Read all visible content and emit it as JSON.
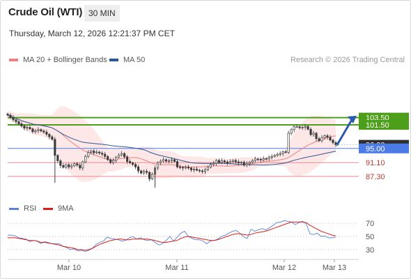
{
  "header": {
    "title": "Crude Oil (WTI)",
    "interval": "30 MIN"
  },
  "timestamp": "Thursday, March 12, 2026 12:21:37 PM CET",
  "legend": {
    "ma20": {
      "label": "MA 20 + Bollinger Bands",
      "color": "#f08080"
    },
    "ma50": {
      "label": "MA 50",
      "color": "#2b5797"
    }
  },
  "copyright": "Research © 2026 Trading Central",
  "rsi_legend": {
    "rsi": {
      "label": "RSI",
      "color": "#5b7fd6"
    },
    "ma9": {
      "label": "9MA",
      "color": "#d91e18"
    }
  },
  "colors": {
    "resistance": "#4d9e1a",
    "pivot": "#4c7be8",
    "support": "#e8898c",
    "candle_up": "#3a3a3a",
    "candle_down": "#3a3a3a",
    "arrow": "#2a5bb0",
    "current_price": "#2f2f2f"
  },
  "chart_data": [
    {
      "type": "candlestick",
      "y_range": [
        84.0,
        109.0
      ],
      "x_tick_labels": [
        "Mar 10",
        "Mar 11",
        "Mar 12",
        "Mar 13"
      ],
      "levels": [
        {
          "value": 103.5,
          "label": "103.50",
          "kind": "resistance"
        },
        {
          "value": 101.5,
          "label": "101.50",
          "kind": "resistance"
        },
        {
          "value": 95.0,
          "label": "95.00",
          "kind": "pivot"
        },
        {
          "value": 91.1,
          "label": "91.10",
          "kind": "support"
        },
        {
          "value": 87.3,
          "label": "87.30",
          "kind": "support"
        }
      ],
      "current_price": {
        "value": 96.0,
        "label": "96.00"
      },
      "close_series": [
        104.2,
        103.6,
        102.9,
        102.4,
        101.8,
        101.2,
        100.6,
        100.8,
        100.4,
        99.6,
        99.9,
        100.2,
        99.8,
        99.5,
        98.9,
        98.2,
        97.5,
        93.1,
        91.6,
        90.3,
        89.8,
        90.5,
        89.9,
        90.2,
        90.8,
        90.4,
        89.6,
        91.3,
        92.8,
        93.9,
        94.3,
        93.8,
        94.0,
        93.7,
        93.4,
        92.8,
        91.9,
        91.1,
        91.7,
        92.6,
        93.2,
        93.6,
        92.7,
        91.4,
        91.0,
        90.6,
        89.9,
        88.8,
        88.2,
        88.7,
        88.4,
        86.6,
        87.9,
        89.6,
        91.1,
        91.5,
        91.9,
        91.5,
        91.6,
        91.9,
        91.4,
        89.9,
        89.8,
        89.6,
        89.9,
        89.6,
        89.1,
        89.3,
        89.0,
        88.8,
        88.6,
        89.1,
        89.9,
        90.6,
        90.9,
        91.7,
        91.1,
        91.6,
        91.3,
        91.0,
        91.4,
        91.7,
        91.3,
        91.0,
        91.2,
        90.4,
        90.8,
        91.2,
        91.6,
        92.1,
        92.0,
        91.8,
        92.2,
        92.1,
        92.6,
        92.8,
        93.1,
        93.4,
        93.6,
        94.1,
        93.9,
        99.2,
        100.2,
        101.0,
        101.0,
        100.7,
        100.8,
        101.1,
        100.3,
        98.8,
        99.2,
        97.7,
        97.1,
        98.0,
        98.5,
        98.1,
        97.3,
        96.6,
        96.0
      ]
    },
    {
      "type": "line",
      "ylim": [
        15,
        85
      ],
      "y_ticks": [
        70,
        50,
        30
      ],
      "series_names": [
        "RSI",
        "9MA"
      ],
      "rsi": [
        52,
        52,
        51,
        48,
        47,
        46,
        42,
        44,
        43,
        39,
        42,
        41,
        39,
        39,
        39,
        35,
        33,
        30,
        31,
        28,
        29,
        27,
        29,
        32,
        38,
        41,
        43,
        49,
        47,
        46,
        45,
        43,
        44,
        48,
        50,
        46,
        48,
        45,
        44,
        45,
        41,
        37,
        39,
        44,
        50,
        43,
        49,
        55,
        58,
        50,
        47,
        45,
        45,
        43,
        39,
        43,
        44,
        46,
        50,
        52,
        55,
        58,
        59,
        55,
        49,
        47,
        61,
        58,
        60,
        62,
        60,
        63,
        67,
        71,
        72,
        74,
        73,
        72,
        68,
        71,
        73,
        69,
        54,
        53,
        55,
        50,
        51,
        48,
        48,
        49
      ],
      "ma9": [
        48,
        48,
        48,
        47,
        46,
        45,
        44,
        44,
        43,
        41,
        41,
        40,
        39,
        38,
        37,
        35,
        34,
        33,
        32,
        30,
        30,
        29,
        30,
        32,
        35,
        38,
        40,
        42,
        44,
        45,
        46,
        46,
        45,
        45,
        46,
        46,
        46,
        46,
        46,
        45,
        44,
        42,
        41,
        41,
        42,
        43,
        44,
        47,
        49,
        50,
        49,
        48,
        47,
        46,
        45,
        44,
        44,
        45,
        47,
        49,
        51,
        53,
        54,
        54,
        53,
        52,
        53,
        55,
        56,
        57,
        58,
        60,
        62,
        64,
        66,
        68,
        70,
        72,
        72,
        72,
        72,
        71,
        67,
        64,
        61,
        58,
        56,
        54,
        52,
        51
      ]
    }
  ]
}
